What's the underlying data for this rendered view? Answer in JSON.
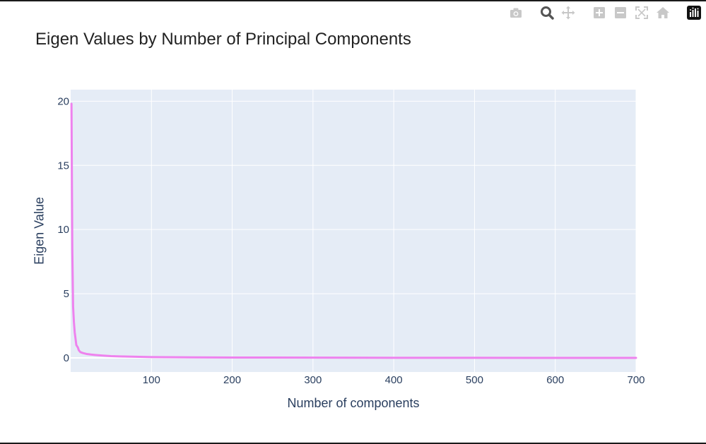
{
  "modebar": {
    "icons": [
      "camera-icon",
      "zoom-icon",
      "pan-icon",
      "zoom-in-icon",
      "zoom-out-icon",
      "autoscale-icon",
      "reset-axes-icon",
      "plotly-logo-icon"
    ]
  },
  "chart_data": {
    "type": "line",
    "title": "Eigen Values by Number of Principal Components",
    "xlabel": "Number of components",
    "ylabel": "Eigen Value",
    "xlim": [
      0,
      700
    ],
    "ylim": [
      -1.1,
      20.9
    ],
    "x_ticks": [
      100,
      200,
      300,
      400,
      500,
      600,
      700
    ],
    "y_ticks": [
      0,
      5,
      10,
      15,
      20
    ],
    "grid": true,
    "legend": "none",
    "series": [
      {
        "color": "#EE82EE",
        "x": [
          1,
          2,
          3,
          4,
          5,
          6,
          7,
          8,
          9,
          10,
          12,
          15,
          20,
          25,
          30,
          40,
          50,
          60,
          80,
          100,
          150,
          200,
          300,
          400,
          500,
          600,
          700
        ],
        "y": [
          19.8,
          8.5,
          4.0,
          2.8,
          2.0,
          1.5,
          1.0,
          0.9,
          0.8,
          0.6,
          0.45,
          0.38,
          0.3,
          0.26,
          0.23,
          0.18,
          0.14,
          0.12,
          0.09,
          0.06,
          0.04,
          0.03,
          0.02,
          0.01,
          0.005,
          0.002,
          0.0
        ]
      }
    ]
  }
}
